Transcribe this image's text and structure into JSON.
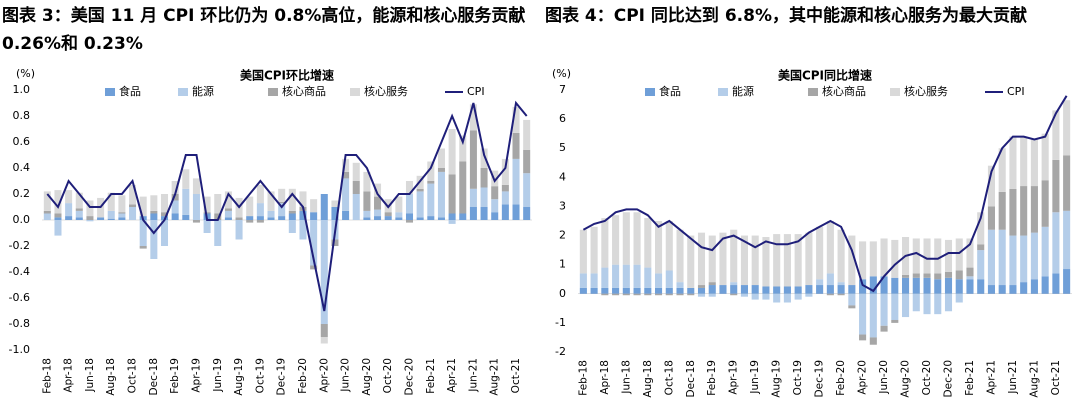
{
  "chart_data": [
    {
      "type": "bar",
      "stacked": true,
      "title": "图表 3：美国 11 月 CPI 环比仍为 0.8%高位，能源和核心服务贡献 0.26%和 0.23%",
      "subtitle": "美国CPI环比增速",
      "y_label": "(%)",
      "categories": [
        "Feb-18",
        null,
        "Apr-18",
        null,
        "Jun-18",
        null,
        "Aug-18",
        null,
        "Oct-18",
        null,
        "Dec-18",
        null,
        "Feb-19",
        null,
        "Apr-19",
        null,
        "Jun-19",
        null,
        "Aug-19",
        null,
        "Oct-19",
        null,
        "Dec-19",
        null,
        "Feb-20",
        null,
        "Apr-20",
        null,
        "Jun-20",
        null,
        "Aug-20",
        null,
        "Oct-20",
        null,
        "Dec-20",
        null,
        "Feb-21",
        null,
        "Apr-21",
        null,
        "Jun-21",
        null,
        "Aug-21",
        null,
        "Oct-21",
        null
      ],
      "series": [
        {
          "name": "食品",
          "color": "#6f9fd8",
          "values": [
            0.0,
            0.02,
            0.03,
            0.02,
            0.0,
            0.02,
            0.01,
            0.02,
            0.0,
            0.03,
            0.05,
            0.03,
            0.05,
            0.04,
            0.0,
            0.05,
            0.0,
            0.02,
            0.0,
            0.03,
            0.03,
            0.02,
            0.03,
            0.05,
            0.07,
            0.06,
            0.2,
            0.1,
            0.07,
            0.0,
            0.02,
            0.03,
            0.03,
            0.02,
            0.05,
            0.02,
            0.03,
            0.02,
            0.05,
            0.05,
            0.1,
            0.1,
            0.06,
            0.12,
            0.12,
            0.1
          ]
        },
        {
          "name": "能源",
          "color": "#b4cde9",
          "values": [
            0.05,
            -0.12,
            0.1,
            0.05,
            -0.01,
            0.0,
            0.06,
            0.03,
            0.1,
            -0.2,
            -0.3,
            -0.2,
            0.1,
            0.2,
            0.2,
            -0.1,
            -0.2,
            0.05,
            -0.15,
            0.0,
            0.1,
            0.05,
            0.1,
            -0.1,
            -0.15,
            -0.35,
            -0.8,
            -0.15,
            0.25,
            0.2,
            0.05,
            0.05,
            0.0,
            0.04,
            0.15,
            0.2,
            0.25,
            0.35,
            -0.03,
            0.0,
            0.14,
            0.15,
            0.1,
            0.1,
            0.35,
            0.26
          ]
        },
        {
          "name": "核心商品",
          "color": "#a6a6a6",
          "values": [
            0.02,
            0.03,
            0.0,
            0.02,
            0.03,
            0.0,
            0.0,
            0.01,
            0.02,
            -0.02,
            0.02,
            0.03,
            0.05,
            0.0,
            -0.02,
            0.01,
            0.05,
            0.02,
            0.02,
            -0.02,
            -0.02,
            0.0,
            0.01,
            0.02,
            0.03,
            -0.03,
            -0.1,
            -0.05,
            0.05,
            0.1,
            0.15,
            0.1,
            0.03,
            0.0,
            -0.02,
            0.02,
            0.02,
            0.03,
            0.3,
            0.4,
            0.45,
            0.15,
            0.1,
            0.05,
            0.2,
            0.18
          ]
        },
        {
          "name": "核心服务",
          "color": "#d9d9d9",
          "values": [
            0.15,
            0.18,
            0.1,
            0.12,
            0.12,
            0.15,
            0.14,
            0.13,
            0.15,
            0.15,
            0.12,
            0.14,
            0.1,
            0.15,
            0.12,
            0.12,
            0.15,
            0.13,
            0.15,
            0.15,
            0.14,
            0.15,
            0.1,
            0.17,
            0.12,
            0.1,
            -0.05,
            0.05,
            0.1,
            0.14,
            0.15,
            0.1,
            0.1,
            0.12,
            0.1,
            0.1,
            0.15,
            0.15,
            0.35,
            0.2,
            0.2,
            0.15,
            0.12,
            0.2,
            0.2,
            0.23
          ]
        },
        {
          "name": "CPI",
          "type": "line",
          "color": "#1f1f7a",
          "values": [
            0.2,
            0.1,
            0.3,
            0.2,
            0.1,
            0.1,
            0.2,
            0.2,
            0.3,
            0.0,
            -0.1,
            0.0,
            0.2,
            0.5,
            0.5,
            0.0,
            0.0,
            0.2,
            0.1,
            0.2,
            0.3,
            0.2,
            0.1,
            0.2,
            0.1,
            -0.3,
            -0.7,
            -0.1,
            0.5,
            0.5,
            0.4,
            0.2,
            0.1,
            0.2,
            0.2,
            0.3,
            0.4,
            0.6,
            0.8,
            0.6,
            0.9,
            0.5,
            0.3,
            0.4,
            0.9,
            0.8
          ]
        }
      ],
      "ylim": [
        -1,
        1
      ],
      "yticks": [
        {
          "value": -1,
          "label": "-1.0"
        },
        -0.8,
        -0.6,
        -0.4,
        -0.2,
        {
          "value": 0,
          "label": "0.0"
        },
        0.2,
        0.4,
        0.6,
        0.8,
        {
          "value": 1,
          "label": "1.0"
        }
      ],
      "legend": "top"
    },
    {
      "type": "bar",
      "stacked": true,
      "title": "图表 4：CPI 同比达到 6.8%，其中能源和核心服务为最大贡献",
      "subtitle": "美国CPI同比增速",
      "y_label": "(%)",
      "categories": [
        "Feb-18",
        null,
        "Apr-18",
        null,
        "Jun-18",
        null,
        "Aug-18",
        null,
        "Oct-18",
        null,
        "Dec-18",
        null,
        "Feb-19",
        null,
        "Apr-19",
        null,
        "Jun-19",
        null,
        "Aug-19",
        null,
        "Oct-19",
        null,
        "Dec-19",
        null,
        "Feb-20",
        null,
        "Apr-20",
        null,
        "Jun-20",
        null,
        "Aug-20",
        null,
        "Oct-20",
        null,
        "Dec-20",
        null,
        "Feb-21",
        null,
        "Apr-21",
        null,
        "Jun-21",
        null,
        "Aug-21",
        null,
        "Oct-21",
        null
      ],
      "series": [
        {
          "name": "食品",
          "color": "#6f9fd8",
          "values": [
            0.2,
            0.2,
            0.2,
            0.2,
            0.2,
            0.2,
            0.2,
            0.2,
            0.2,
            0.2,
            0.2,
            0.2,
            0.3,
            0.3,
            0.3,
            0.3,
            0.3,
            0.25,
            0.25,
            0.25,
            0.25,
            0.3,
            0.3,
            0.3,
            0.3,
            0.3,
            0.5,
            0.6,
            0.6,
            0.55,
            0.55,
            0.55,
            0.55,
            0.5,
            0.55,
            0.5,
            0.5,
            0.5,
            0.3,
            0.3,
            0.3,
            0.4,
            0.5,
            0.6,
            0.7,
            0.85
          ]
        },
        {
          "name": "能源",
          "color": "#b4cde9",
          "values": [
            0.5,
            0.5,
            0.7,
            0.8,
            0.8,
            0.8,
            0.7,
            0.5,
            0.6,
            0.2,
            0.0,
            -0.1,
            -0.1,
            0.0,
            0.1,
            -0.1,
            -0.2,
            -0.2,
            -0.3,
            -0.3,
            -0.2,
            -0.1,
            0.2,
            0.4,
            0.1,
            -0.4,
            -1.4,
            -1.5,
            -1.1,
            -0.9,
            -0.8,
            -0.6,
            -0.7,
            -0.7,
            -0.6,
            -0.3,
            0.1,
            1.0,
            1.9,
            1.9,
            1.7,
            1.6,
            1.6,
            1.7,
            2.1,
            2.0
          ]
        },
        {
          "name": "核心商品",
          "color": "#a6a6a6",
          "values": [
            0.0,
            0.0,
            -0.05,
            -0.05,
            -0.05,
            -0.05,
            -0.05,
            -0.05,
            -0.05,
            -0.05,
            -0.05,
            0.1,
            0.1,
            0.0,
            -0.05,
            0.0,
            0.0,
            0.0,
            0.0,
            0.0,
            0.0,
            0.0,
            0.0,
            -0.05,
            -0.05,
            -0.1,
            -0.2,
            -0.25,
            -0.2,
            -0.1,
            0.1,
            0.15,
            0.15,
            0.2,
            0.2,
            0.3,
            0.3,
            0.2,
            0.8,
            1.3,
            1.6,
            1.7,
            1.6,
            1.6,
            1.8,
            1.9
          ]
        },
        {
          "name": "核心服务",
          "color": "#d9d9d9",
          "values": [
            1.5,
            1.6,
            1.7,
            1.7,
            1.8,
            1.8,
            1.7,
            1.8,
            1.7,
            1.8,
            1.8,
            1.8,
            1.6,
            1.8,
            1.8,
            1.7,
            1.7,
            1.7,
            1.8,
            1.8,
            1.8,
            1.8,
            1.8,
            1.8,
            1.8,
            1.7,
            1.3,
            1.2,
            1.3,
            1.3,
            1.3,
            1.2,
            1.2,
            1.2,
            1.1,
            1.1,
            1.0,
            1.1,
            1.4,
            1.5,
            1.8,
            1.7,
            1.6,
            1.6,
            1.7,
            1.9
          ]
        },
        {
          "name": "CPI",
          "type": "line",
          "color": "#1f1f7a",
          "values": [
            2.2,
            2.4,
            2.5,
            2.8,
            2.9,
            2.9,
            2.7,
            2.3,
            2.5,
            2.2,
            1.9,
            1.6,
            1.5,
            1.9,
            2.0,
            1.8,
            1.6,
            1.8,
            1.7,
            1.7,
            1.8,
            2.1,
            2.3,
            2.5,
            2.3,
            1.5,
            0.3,
            0.1,
            0.6,
            1.0,
            1.3,
            1.4,
            1.2,
            1.2,
            1.4,
            1.4,
            1.7,
            2.6,
            4.2,
            5.0,
            5.4,
            5.4,
            5.3,
            5.4,
            6.2,
            6.8
          ]
        }
      ],
      "ylim": [
        -2,
        7
      ],
      "yticks": [
        -2,
        -1,
        0,
        1,
        2,
        3,
        4,
        5,
        6,
        7
      ],
      "legend": "top"
    }
  ]
}
